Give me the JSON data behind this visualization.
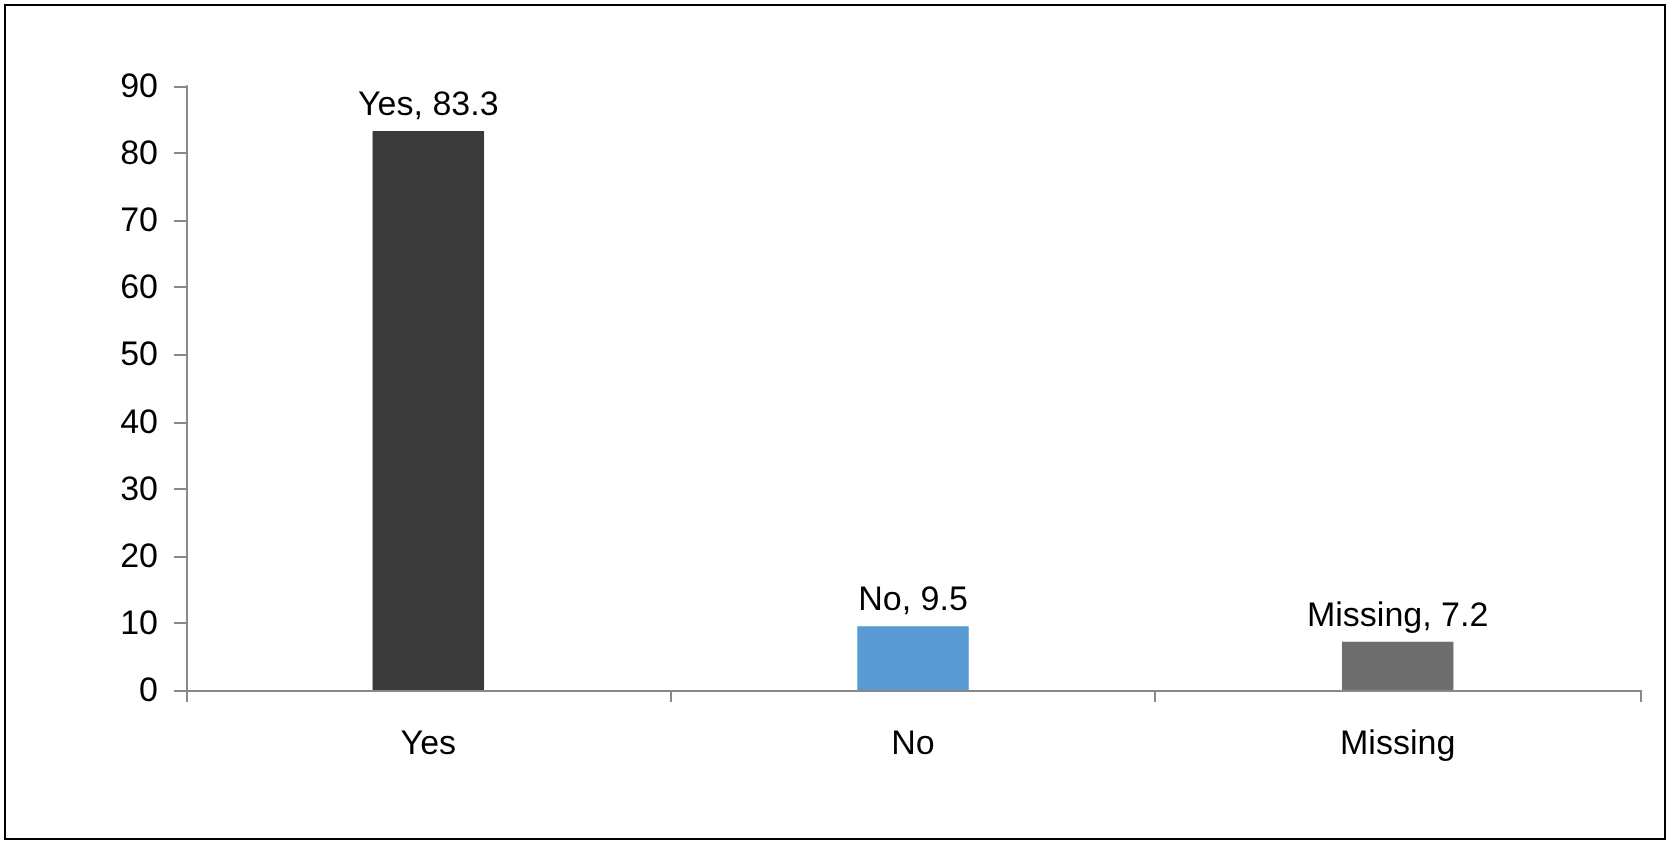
{
  "chart_data": {
    "type": "bar",
    "categories": [
      "Yes",
      "No",
      "Missing"
    ],
    "values": [
      83.3,
      9.5,
      7.2
    ],
    "colors": [
      "#3a3a3a",
      "#5b9bd5",
      "#6e6e6e"
    ],
    "value_labels": [
      "Yes, 83.3",
      "No, 9.5",
      "Missing, 7.2"
    ],
    "ylim": [
      0,
      90
    ],
    "yticks": [
      0,
      10,
      20,
      30,
      40,
      50,
      60,
      70,
      80,
      90
    ]
  }
}
